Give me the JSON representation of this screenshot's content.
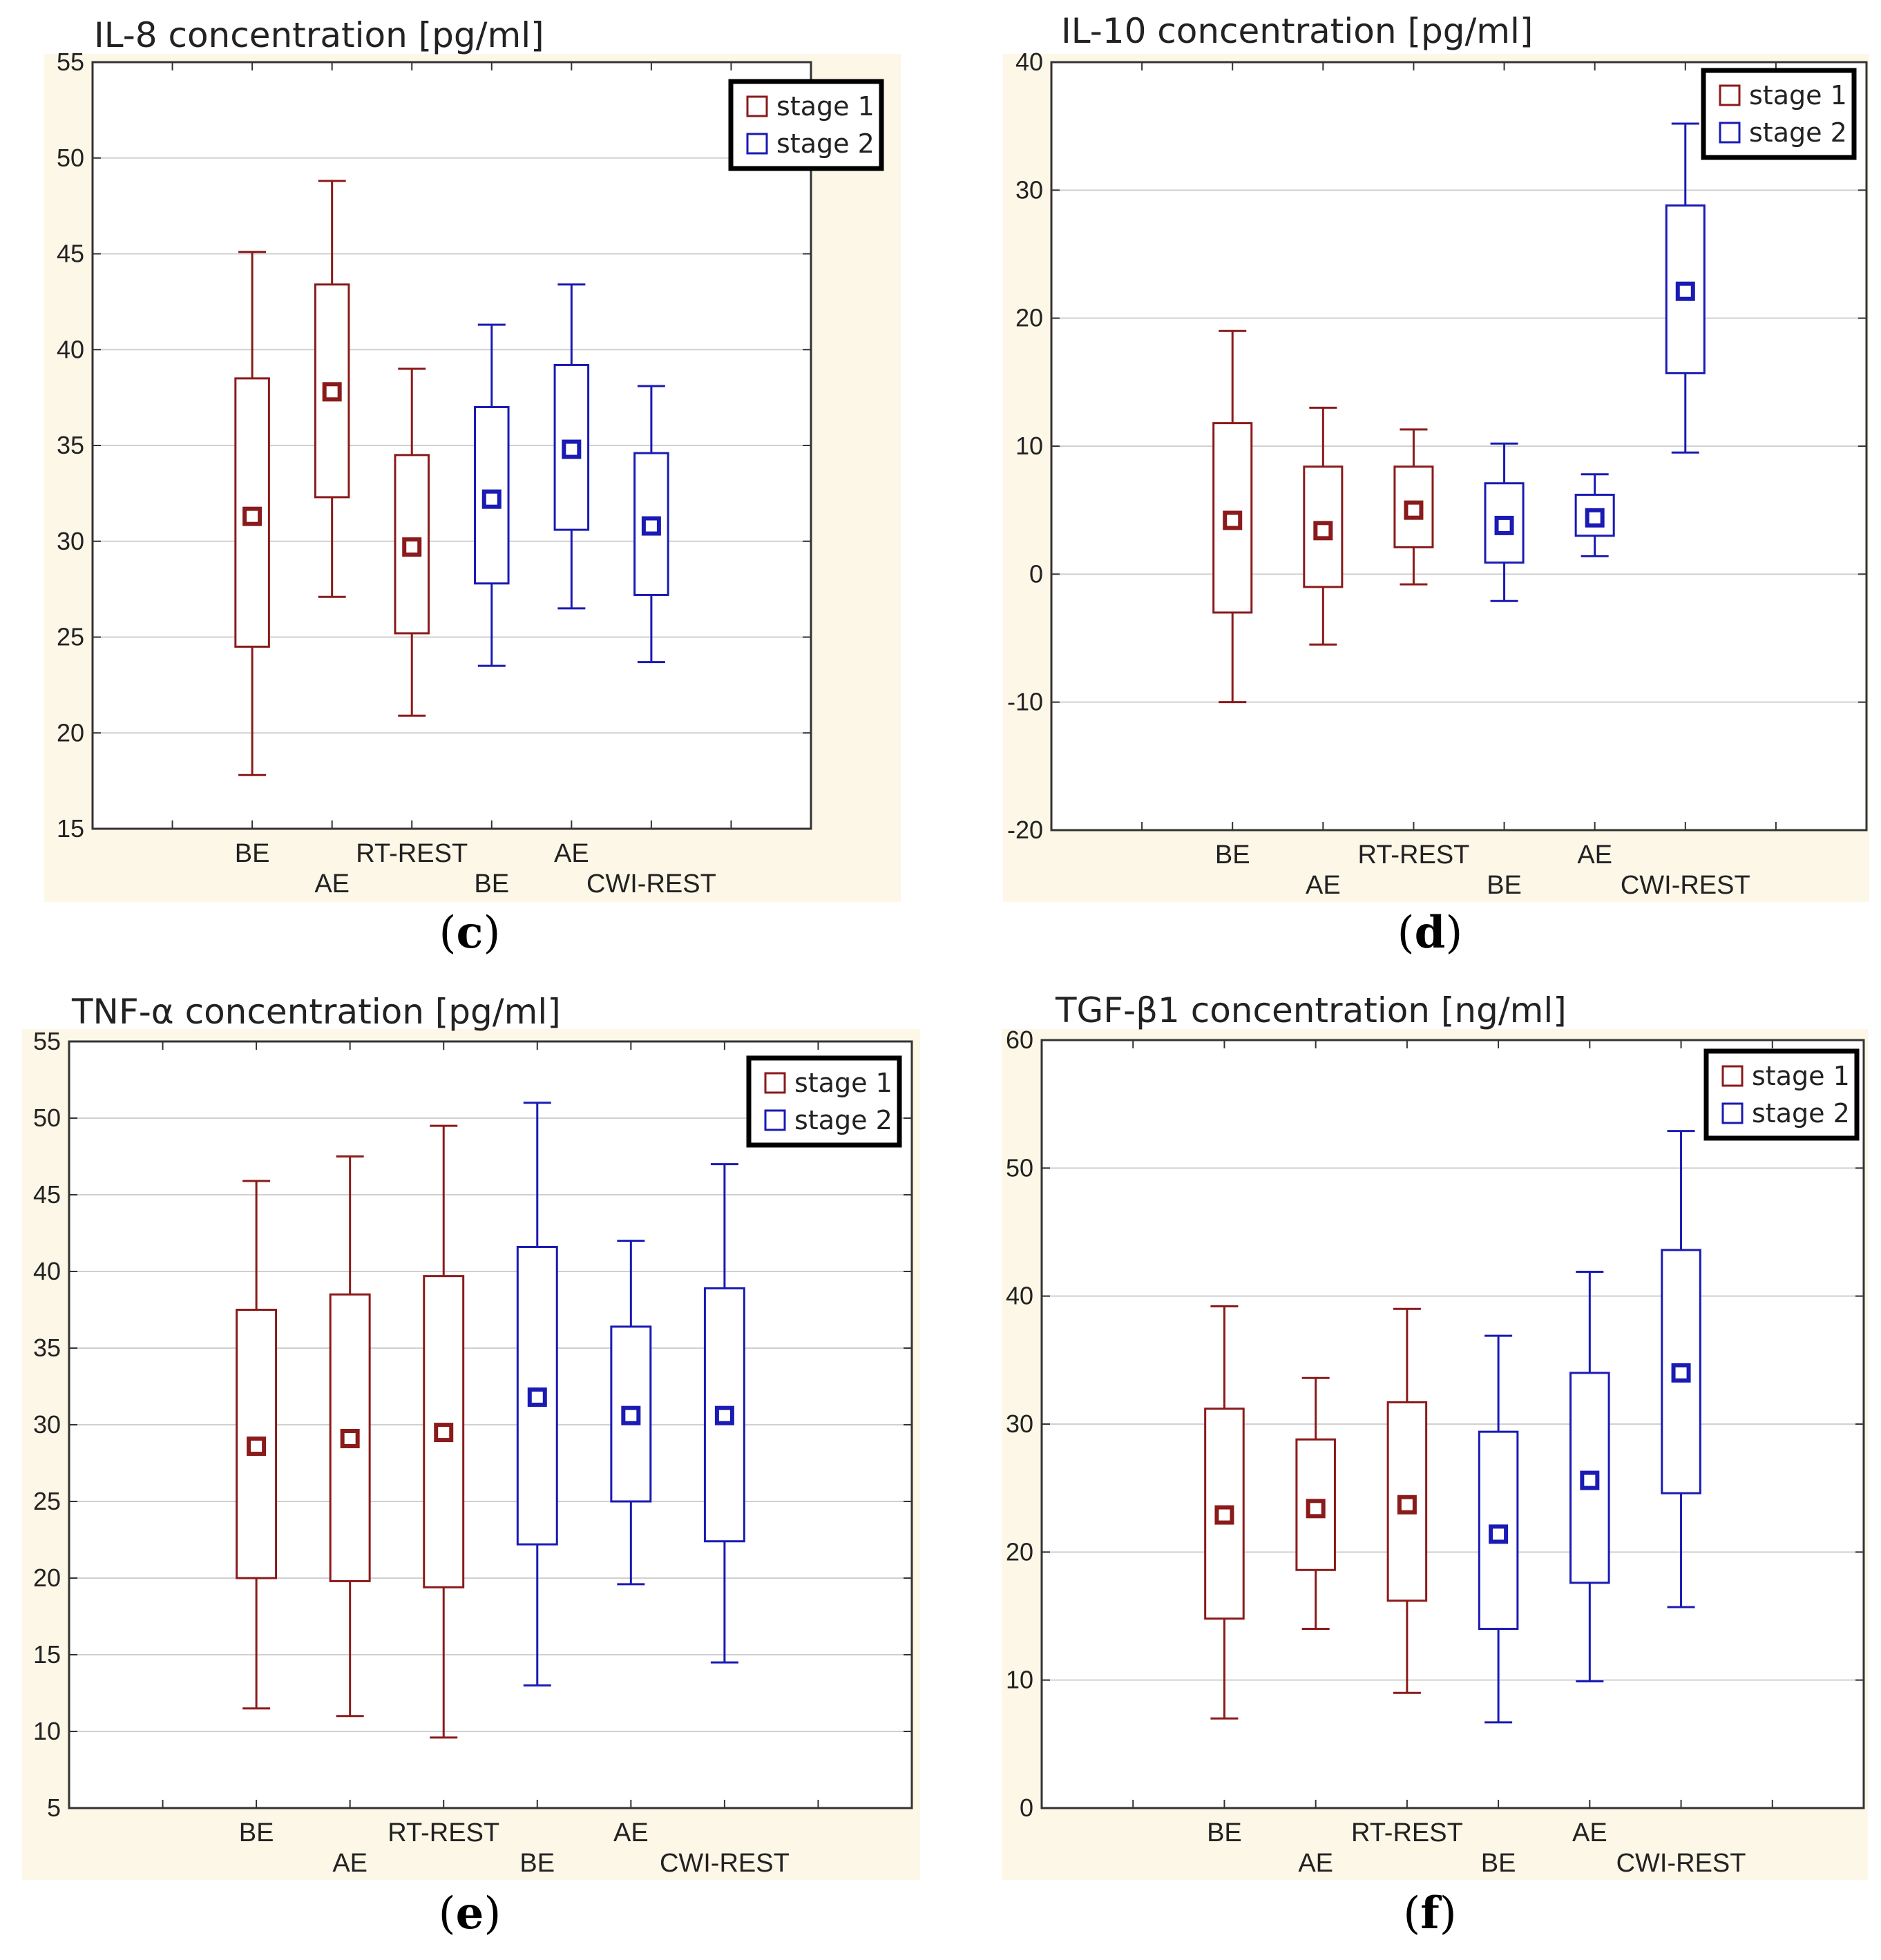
{
  "colors": {
    "stage1": "#8b1a1a",
    "stage2": "#1a1ab4",
    "panel_background": "#fdf7e8",
    "plot_background": "#ffffff",
    "grid": "#d0d0d0",
    "axis": "#333333"
  },
  "chart_data": [
    {
      "id": "c",
      "type": "box",
      "panel_label": "c",
      "title": "IL-8 concentration [pg/ml]",
      "ylim": [
        15,
        55
      ],
      "yticks": [
        15,
        20,
        25,
        30,
        35,
        40,
        45,
        50,
        55
      ],
      "x_slots": 9,
      "legend": [
        {
          "label": "stage 1",
          "series": "stage1"
        },
        {
          "label": "stage 2",
          "series": "stage2"
        }
      ],
      "boxes": [
        {
          "label": "BE",
          "row": 0,
          "series": "stage1",
          "whisker_low": 17.8,
          "q1": 24.5,
          "mean": 31.3,
          "q3": 38.5,
          "whisker_high": 45.1
        },
        {
          "label": "AE",
          "row": 1,
          "series": "stage1",
          "whisker_low": 27.1,
          "q1": 32.3,
          "mean": 37.8,
          "q3": 43.4,
          "whisker_high": 48.8
        },
        {
          "label": "RT-REST",
          "row": 0,
          "series": "stage1",
          "whisker_low": 20.9,
          "q1": 25.2,
          "mean": 29.7,
          "q3": 34.5,
          "whisker_high": 39.0
        },
        {
          "label": "BE",
          "row": 1,
          "series": "stage2",
          "whisker_low": 23.5,
          "q1": 27.8,
          "mean": 32.2,
          "q3": 37.0,
          "whisker_high": 41.3
        },
        {
          "label": "AE",
          "row": 0,
          "series": "stage2",
          "whisker_low": 26.5,
          "q1": 30.6,
          "mean": 34.8,
          "q3": 39.2,
          "whisker_high": 43.4
        },
        {
          "label": "CWI-REST",
          "row": 1,
          "series": "stage2",
          "whisker_low": 23.7,
          "q1": 27.2,
          "mean": 30.8,
          "q3": 34.6,
          "whisker_high": 38.1
        }
      ]
    },
    {
      "id": "d",
      "type": "box",
      "panel_label": "d",
      "title": "IL-10 concentration [pg/ml]",
      "ylim": [
        -20,
        40
      ],
      "yticks": [
        -20,
        -10,
        0,
        10,
        20,
        30,
        40
      ],
      "x_slots": 9,
      "legend": [
        {
          "label": "stage 1",
          "series": "stage1"
        },
        {
          "label": "stage 2",
          "series": "stage2"
        }
      ],
      "boxes": [
        {
          "label": "BE",
          "row": 0,
          "series": "stage1",
          "whisker_low": -10.0,
          "q1": -3.0,
          "mean": 4.2,
          "q3": 11.8,
          "whisker_high": 19.0
        },
        {
          "label": "AE",
          "row": 1,
          "series": "stage1",
          "whisker_low": -5.5,
          "q1": -1.0,
          "mean": 3.4,
          "q3": 8.4,
          "whisker_high": 13.0
        },
        {
          "label": "RT-REST",
          "row": 0,
          "series": "stage1",
          "whisker_low": -0.8,
          "q1": 2.1,
          "mean": 5.0,
          "q3": 8.4,
          "whisker_high": 11.3
        },
        {
          "label": "BE",
          "row": 1,
          "series": "stage2",
          "whisker_low": -2.1,
          "q1": 0.9,
          "mean": 3.8,
          "q3": 7.1,
          "whisker_high": 10.2
        },
        {
          "label": "AE",
          "row": 0,
          "series": "stage2",
          "whisker_low": 1.4,
          "q1": 3.0,
          "mean": 4.4,
          "q3": 6.2,
          "whisker_high": 7.8
        },
        {
          "label": "CWI-REST",
          "row": 1,
          "series": "stage2",
          "whisker_low": 9.5,
          "q1": 15.7,
          "mean": 22.1,
          "q3": 28.8,
          "whisker_high": 35.2
        }
      ]
    },
    {
      "id": "e",
      "type": "box",
      "panel_label": "e",
      "title": "TNF-α concentration [pg/ml]",
      "ylim": [
        5,
        55
      ],
      "yticks": [
        5,
        10,
        15,
        20,
        25,
        30,
        35,
        40,
        45,
        50,
        55
      ],
      "x_slots": 9,
      "legend": [
        {
          "label": "stage 1",
          "series": "stage1"
        },
        {
          "label": "stage 2",
          "series": "stage2"
        }
      ],
      "boxes": [
        {
          "label": "BE",
          "row": 0,
          "series": "stage1",
          "whisker_low": 11.5,
          "q1": 20.0,
          "mean": 28.6,
          "q3": 37.5,
          "whisker_high": 45.9
        },
        {
          "label": "AE",
          "row": 1,
          "series": "stage1",
          "whisker_low": 11.0,
          "q1": 19.8,
          "mean": 29.1,
          "q3": 38.5,
          "whisker_high": 47.5
        },
        {
          "label": "RT-REST",
          "row": 0,
          "series": "stage1",
          "whisker_low": 9.6,
          "q1": 19.4,
          "mean": 29.5,
          "q3": 39.7,
          "whisker_high": 49.5
        },
        {
          "label": "BE",
          "row": 1,
          "series": "stage2",
          "whisker_low": 13.0,
          "q1": 22.2,
          "mean": 31.8,
          "q3": 41.6,
          "whisker_high": 51.0
        },
        {
          "label": "AE",
          "row": 0,
          "series": "stage2",
          "whisker_low": 19.6,
          "q1": 25.0,
          "mean": 30.6,
          "q3": 36.4,
          "whisker_high": 42.0
        },
        {
          "label": "CWI-REST",
          "row": 1,
          "series": "stage2",
          "whisker_low": 14.5,
          "q1": 22.4,
          "mean": 30.6,
          "q3": 38.9,
          "whisker_high": 47.0
        }
      ]
    },
    {
      "id": "f",
      "type": "box",
      "panel_label": "f",
      "title": "TGF-β1 concentration [ng/ml]",
      "ylim": [
        0,
        60
      ],
      "yticks": [
        0,
        10,
        20,
        30,
        40,
        50,
        60
      ],
      "x_slots": 9,
      "legend": [
        {
          "label": "stage 1",
          "series": "stage1"
        },
        {
          "label": "stage 2",
          "series": "stage2"
        }
      ],
      "boxes": [
        {
          "label": "BE",
          "row": 0,
          "series": "stage1",
          "whisker_low": 7.0,
          "q1": 14.8,
          "mean": 22.9,
          "q3": 31.2,
          "whisker_high": 39.2
        },
        {
          "label": "AE",
          "row": 1,
          "series": "stage1",
          "whisker_low": 14.0,
          "q1": 18.6,
          "mean": 23.4,
          "q3": 28.8,
          "whisker_high": 33.6
        },
        {
          "label": "RT-REST",
          "row": 0,
          "series": "stage1",
          "whisker_low": 9.0,
          "q1": 16.2,
          "mean": 23.7,
          "q3": 31.7,
          "whisker_high": 39.0
        },
        {
          "label": "BE",
          "row": 1,
          "series": "stage2",
          "whisker_low": 6.7,
          "q1": 14.0,
          "mean": 21.4,
          "q3": 29.4,
          "whisker_high": 36.9
        },
        {
          "label": "AE",
          "row": 0,
          "series": "stage2",
          "whisker_low": 9.9,
          "q1": 17.6,
          "mean": 25.6,
          "q3": 34.0,
          "whisker_high": 41.9
        },
        {
          "label": "CWI-REST",
          "row": 1,
          "series": "stage2",
          "whisker_low": 15.7,
          "q1": 24.6,
          "mean": 34.0,
          "q3": 43.6,
          "whisker_high": 52.9
        }
      ]
    }
  ]
}
